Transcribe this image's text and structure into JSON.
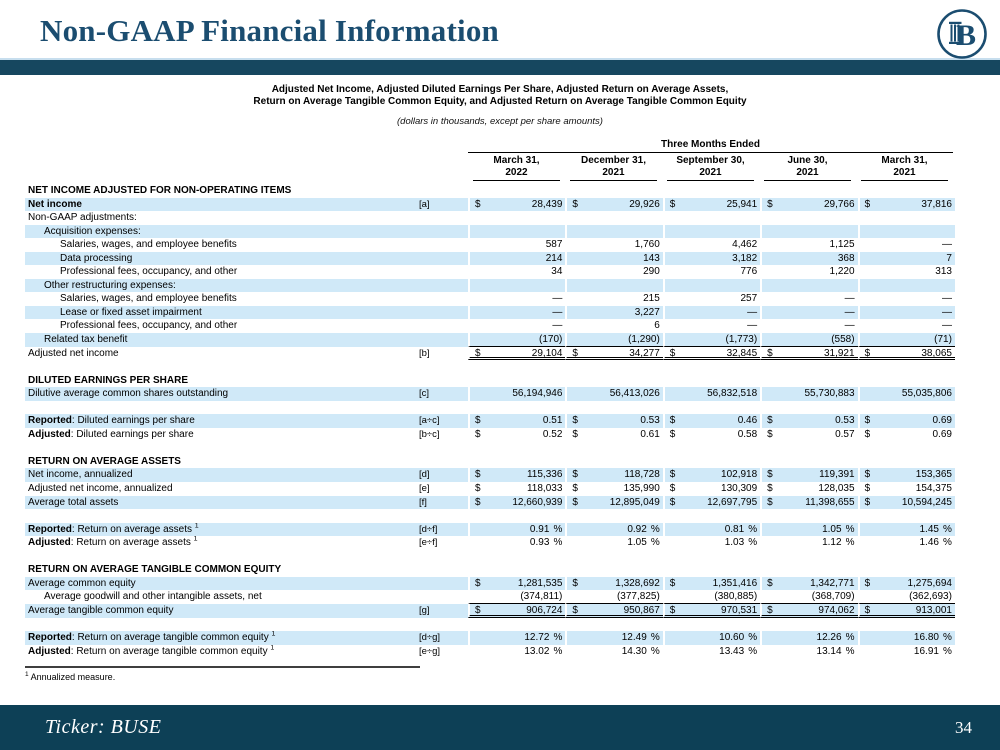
{
  "page": {
    "title": "Non-GAAP Financial Information"
  },
  "logo": {
    "letter": "B",
    "color": "#1b4d70"
  },
  "colors": {
    "accent_bar": "#16475f",
    "footer_bar": "#0d4056",
    "row_highlight": "#d0e9f8",
    "title_text": "#1b4d70"
  },
  "subtitle": {
    "line1": "Adjusted Net Income, Adjusted Diluted Earnings Per Share, Adjusted Return on Average Assets,",
    "line2": "Return on Average Tangible Common Equity, and Adjusted Return on Average Tangible Common Equity",
    "note": "(dollars in thousands, except per share amounts)"
  },
  "table": {
    "span_header": "Three Months Ended",
    "columns": [
      {
        "line1": "March 31,",
        "line2": "2022"
      },
      {
        "line1": "December 31,",
        "line2": "2021"
      },
      {
        "line1": "September 30,",
        "line2": "2021"
      },
      {
        "line1": "June 30,",
        "line2": "2021"
      },
      {
        "line1": "March 31,",
        "line2": "2021"
      }
    ],
    "rows": [
      {
        "type": "section",
        "label": "NET INCOME ADJUSTED FOR NON-OPERATING ITEMS"
      },
      {
        "label": "Net income",
        "bold": true,
        "hl": true,
        "ref": "[a]",
        "dollar": true,
        "values": [
          "28,439",
          "29,926",
          "25,941",
          "29,766",
          "37,816"
        ]
      },
      {
        "label": "Non-GAAP adjustments:"
      },
      {
        "label": "Acquisition expenses:",
        "indent": 1,
        "hl": true
      },
      {
        "label": "Salaries, wages, and employee benefits",
        "indent": 2,
        "values": [
          "587",
          "1,760",
          "4,462",
          "1,125",
          "—"
        ]
      },
      {
        "label": "Data processing",
        "indent": 2,
        "hl": true,
        "values": [
          "214",
          "143",
          "3,182",
          "368",
          "7"
        ]
      },
      {
        "label": "Professional fees, occupancy, and other",
        "indent": 2,
        "values": [
          "34",
          "290",
          "776",
          "1,220",
          "313"
        ]
      },
      {
        "label": "Other restructuring expenses:",
        "indent": 1,
        "hl": true
      },
      {
        "label": "Salaries, wages, and employee benefits",
        "indent": 2,
        "values": [
          "—",
          "215",
          "257",
          "—",
          "—"
        ]
      },
      {
        "label": "Lease or fixed asset impairment",
        "indent": 2,
        "hl": true,
        "values": [
          "—",
          "3,227",
          "—",
          "—",
          "—"
        ]
      },
      {
        "label": "Professional fees, occupancy, and other",
        "indent": 2,
        "values": [
          "—",
          "6",
          "—",
          "—",
          "—"
        ]
      },
      {
        "label": "Related tax benefit",
        "indent": 1,
        "hl": true,
        "underline": true,
        "values": [
          "(170)",
          "(1,290)",
          "(1,773)",
          "(558)",
          "(71)"
        ]
      },
      {
        "label": "Adjusted net income",
        "ref": "[b]",
        "dollar": true,
        "total": true,
        "values": [
          "29,104",
          "34,277",
          "32,845",
          "31,921",
          "38,065"
        ]
      },
      {
        "type": "spacer"
      },
      {
        "type": "section",
        "label": "DILUTED EARNINGS PER SHARE"
      },
      {
        "label": "Dilutive average common shares outstanding",
        "hl": true,
        "ref": "[c]",
        "values": [
          "56,194,946",
          "56,413,026",
          "56,832,518",
          "55,730,883",
          "55,035,806"
        ]
      },
      {
        "type": "spacer"
      },
      {
        "prefix": "Reported",
        "label": ": Diluted earnings per share",
        "hl": true,
        "ref": "[a÷c]",
        "dollar": true,
        "values": [
          "0.51",
          "0.53",
          "0.46",
          "0.53",
          "0.69"
        ]
      },
      {
        "prefix": "Adjusted",
        "label": ": Diluted earnings per share",
        "ref": "[b÷c]",
        "dollar": true,
        "values": [
          "0.52",
          "0.61",
          "0.58",
          "0.57",
          "0.69"
        ]
      },
      {
        "type": "spacer"
      },
      {
        "type": "section",
        "label": "RETURN ON AVERAGE ASSETS"
      },
      {
        "label": "Net income, annualized",
        "hl": true,
        "ref": "[d]",
        "dollar": true,
        "values": [
          "115,336",
          "118,728",
          "102,918",
          "119,391",
          "153,365"
        ]
      },
      {
        "label": "Adjusted net income, annualized",
        "ref": "[e]",
        "dollar": true,
        "values": [
          "118,033",
          "135,990",
          "130,309",
          "128,035",
          "154,375"
        ]
      },
      {
        "label": "Average total assets",
        "hl": true,
        "ref": "[f]",
        "dollar": true,
        "values": [
          "12,660,939",
          "12,895,049",
          "12,697,795",
          "11,398,655",
          "10,594,245"
        ]
      },
      {
        "type": "spacer"
      },
      {
        "prefix": "Reported",
        "label": ": Return on average assets",
        "sup": "1",
        "hl": true,
        "ref": "[d÷f]",
        "pct": true,
        "values": [
          "0.91",
          "0.92",
          "0.81",
          "1.05",
          "1.45"
        ]
      },
      {
        "prefix": "Adjusted",
        "label": ": Return on average assets",
        "sup": "1",
        "ref": "[e÷f]",
        "pct": true,
        "values": [
          "0.93",
          "1.05",
          "1.03",
          "1.12",
          "1.46"
        ]
      },
      {
        "type": "spacer"
      },
      {
        "type": "section",
        "label": "RETURN ON AVERAGE TANGIBLE COMMON EQUITY"
      },
      {
        "label": "Average common equity",
        "hl": true,
        "dollar": true,
        "values": [
          "1,281,535",
          "1,328,692",
          "1,351,416",
          "1,342,771",
          "1,275,694"
        ]
      },
      {
        "label": "Average goodwill and other intangible assets, net",
        "indent": 1,
        "underline": true,
        "values": [
          "(374,811)",
          "(377,825)",
          "(380,885)",
          "(368,709)",
          "(362,693)"
        ]
      },
      {
        "label": "Average tangible common equity",
        "hl": true,
        "ref": "[g]",
        "dollar": true,
        "total": true,
        "values": [
          "906,724",
          "950,867",
          "970,531",
          "974,062",
          "913,001"
        ]
      },
      {
        "type": "spacer"
      },
      {
        "prefix": "Reported",
        "label": ": Return on average tangible common equity",
        "sup": "1",
        "hl": true,
        "ref": "[d÷g]",
        "pct": true,
        "values": [
          "12.72",
          "12.49",
          "10.60",
          "12.26",
          "16.80"
        ]
      },
      {
        "prefix": "Adjusted",
        "label": ": Return on average tangible common equity",
        "sup": "1",
        "ref": "[e÷g]",
        "pct": true,
        "values": [
          "13.02",
          "14.30",
          "13.43",
          "13.14",
          "16.91"
        ]
      }
    ]
  },
  "footnote": {
    "marker": "1",
    "text": "Annualized measure."
  },
  "footer": {
    "ticker": "Ticker:  BUSE",
    "page_number": "34"
  }
}
